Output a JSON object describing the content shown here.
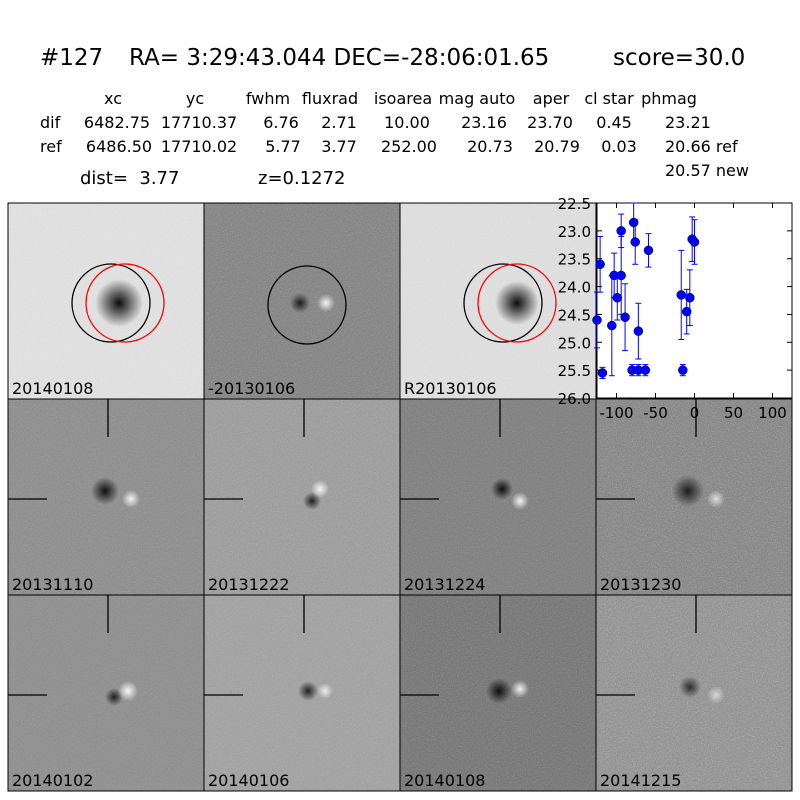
{
  "header": {
    "id": "#127",
    "coords": "RA= 3:29:43.044 DEC=-28:06:01.65",
    "score": "score=30.0"
  },
  "table": {
    "columns": [
      "xc",
      "yc",
      "fwhm",
      "fluxrad",
      "isoarea",
      "mag auto",
      "aper",
      "cl star",
      "phmag"
    ],
    "rows": [
      [
        "dif",
        "6482.75",
        "17710.37",
        "6.76",
        "2.71",
        "10.00",
        "23.16",
        "23.70",
        "0.45",
        "23.21"
      ],
      [
        "ref",
        "6486.50",
        "17710.02",
        "5.77",
        "3.77",
        "252.00",
        "20.73",
        "20.79",
        "0.03",
        "20.66 ref"
      ]
    ],
    "note": "20.57 new"
  },
  "info": {
    "dist": "dist=  3.77",
    "z": "z=0.1272"
  },
  "stamps": [
    {
      "label": "20140108"
    },
    {
      "label": "-20130106"
    },
    {
      "label": "R20130106"
    },
    {
      "label": "20131110"
    },
    {
      "label": "20131222"
    },
    {
      "label": "20131224"
    },
    {
      "label": "20131230"
    },
    {
      "label": "20140102"
    },
    {
      "label": "20140106"
    },
    {
      "label": "20140108",
      "color": "#ff0000"
    },
    {
      "label": "20141215"
    }
  ],
  "chart_data": {
    "type": "scatter",
    "x": [
      -125,
      -121,
      -118,
      -106,
      -103,
      -99,
      -94,
      -94,
      -89,
      -80,
      -78,
      -76,
      -72,
      -72,
      -63,
      -59,
      -17,
      -15,
      -10,
      -6,
      -3,
      0
    ],
    "series": [
      {
        "color": "#0000ff",
        "values": [
          24.6,
          23.6,
          25.55,
          24.7,
          23.8,
          24.2,
          23.0,
          23.8,
          24.55,
          25.5,
          22.85,
          23.2,
          25.5,
          24.8,
          25.5,
          23.35,
          24.15,
          25.5,
          24.45,
          24.2,
          23.15,
          23.2
        ],
        "errors": [
          0.5,
          0.5,
          0.1,
          0.9,
          0.4,
          0.4,
          0.3,
          0.7,
          0.6,
          0.1,
          0.35,
          0.4,
          0.1,
          0.5,
          0.1,
          0.3,
          0.8,
          0.1,
          0.4,
          0.5,
          0.4,
          0.4
        ]
      }
    ],
    "xlim": [
      -125,
      125
    ],
    "ylim": [
      26,
      22.5
    ],
    "xticks": [
      -100,
      -50,
      0,
      50,
      100
    ],
    "yticks": [
      22.5,
      {
        "value": 23,
        "label": "23.0"
      },
      23.5,
      {
        "value": 24,
        "label": "24.0"
      },
      24.5,
      {
        "value": 25,
        "label": "25.0"
      },
      25.5,
      {
        "value": 26,
        "label": "26.0"
      }
    ]
  }
}
